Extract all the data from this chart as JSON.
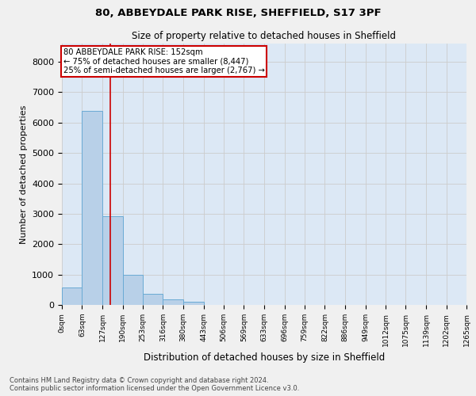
{
  "title1": "80, ABBEYDALE PARK RISE, SHEFFIELD, S17 3PF",
  "title2": "Size of property relative to detached houses in Sheffield",
  "xlabel": "Distribution of detached houses by size in Sheffield",
  "ylabel": "Number of detached properties",
  "footnote": "Contains HM Land Registry data © Crown copyright and database right 2024.\nContains public sector information licensed under the Open Government Licence v3.0.",
  "bin_edges": [
    0,
    63,
    127,
    190,
    253,
    316,
    380,
    443,
    506,
    569,
    633,
    696,
    759,
    822,
    886,
    949,
    1012,
    1075,
    1139,
    1202,
    1265
  ],
  "bar_heights": [
    570,
    6380,
    2920,
    990,
    360,
    170,
    105,
    0,
    0,
    0,
    0,
    0,
    0,
    0,
    0,
    0,
    0,
    0,
    0,
    0
  ],
  "bar_color": "#b8d0e8",
  "bar_edge_color": "#6aaad4",
  "tick_labels": [
    "0sqm",
    "63sqm",
    "127sqm",
    "190sqm",
    "253sqm",
    "316sqm",
    "380sqm",
    "443sqm",
    "506sqm",
    "569sqm",
    "633sqm",
    "696sqm",
    "759sqm",
    "822sqm",
    "886sqm",
    "949sqm",
    "1012sqm",
    "1075sqm",
    "1139sqm",
    "1202sqm",
    "1265sqm"
  ],
  "vline_x": 152,
  "vline_color": "#cc0000",
  "ylim": [
    0,
    8600
  ],
  "yticks": [
    0,
    1000,
    2000,
    3000,
    4000,
    5000,
    6000,
    7000,
    8000
  ],
  "annotation_text": "80 ABBEYDALE PARK RISE: 152sqm\n← 75% of detached houses are smaller (8,447)\n25% of semi-detached houses are larger (2,767) →",
  "box_facecolor": "#ffffff",
  "box_edgecolor": "#cc0000",
  "grid_color": "#cccccc",
  "bg_color": "#dce8f5",
  "fig_color": "#f0f0f0"
}
